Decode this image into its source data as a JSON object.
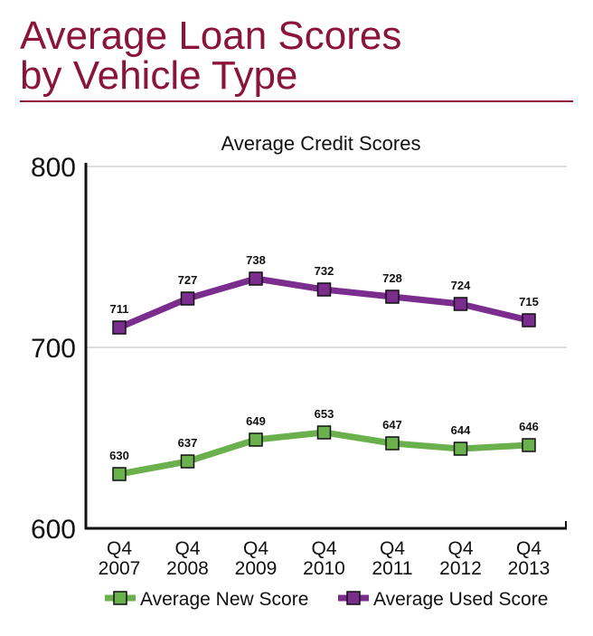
{
  "header": {
    "title_line1": "Average Loan Scores",
    "title_line2": "by Vehicle Type"
  },
  "chart_data": {
    "type": "line",
    "title": "Average Credit Scores",
    "categories": [
      [
        "Q4",
        "2007"
      ],
      [
        "Q4",
        "2008"
      ],
      [
        "Q4",
        "2009"
      ],
      [
        "Q4",
        "2010"
      ],
      [
        "Q4",
        "2011"
      ],
      [
        "Q4",
        "2012"
      ],
      [
        "Q4",
        "2013"
      ]
    ],
    "ylim": [
      600,
      800
    ],
    "yticks": [
      600,
      700,
      800
    ],
    "grid": true,
    "legend": "bottom",
    "series": [
      {
        "name": "Average New Score",
        "color": "#6ab04c",
        "values": [
          630,
          637,
          649,
          653,
          647,
          644,
          646
        ]
      },
      {
        "name": "Average Used Score",
        "color": "#7b2d8e",
        "values": [
          711,
          727,
          738,
          732,
          728,
          724,
          715
        ]
      }
    ]
  }
}
